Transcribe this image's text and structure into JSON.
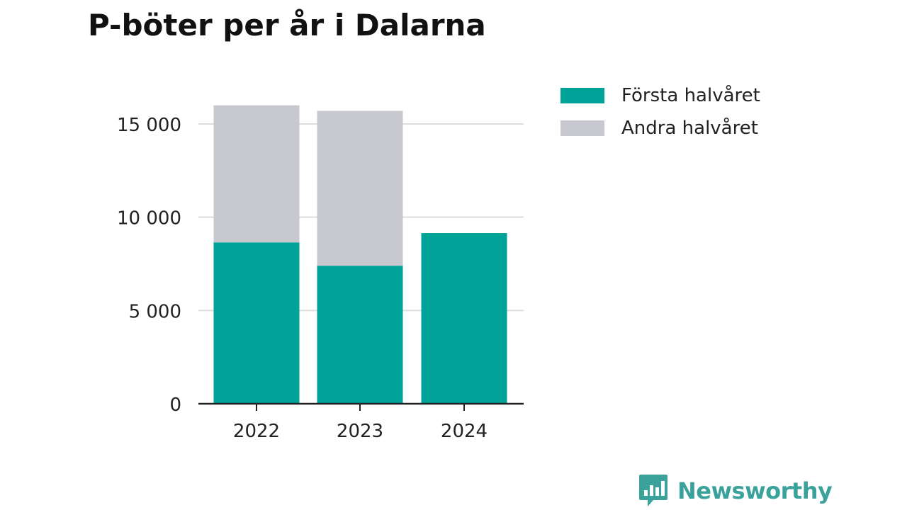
{
  "title": "P-böter per år i Dalarna",
  "colors": {
    "first_half": "#00a398",
    "second_half": "#c8c8d0",
    "grid": "#dddddd",
    "axis": "#222222",
    "brand": "#3aa19b"
  },
  "legend": {
    "items": [
      {
        "label": "Första halvåret",
        "color": "#00a398"
      },
      {
        "label": "Andra halvåret",
        "color": "#c8c8d0"
      }
    ]
  },
  "brand": {
    "name": "Newsworthy",
    "icon": "bar-chart-speech-bubble-icon"
  },
  "chart_data": {
    "type": "bar",
    "stacked": true,
    "categories": [
      "2022",
      "2023",
      "2024"
    ],
    "series": [
      {
        "name": "Första halvåret",
        "values": [
          8650,
          7400,
          9150
        ]
      },
      {
        "name": "Andra halvåret",
        "values": [
          7350,
          8300,
          0
        ]
      }
    ],
    "ylim": [
      0,
      16500
    ],
    "yticks": [
      0,
      5000,
      10000,
      15000
    ],
    "ytick_labels": [
      "0",
      "5 000",
      "10 000",
      "15 000"
    ],
    "grid": true,
    "legend_position": "top-right"
  }
}
